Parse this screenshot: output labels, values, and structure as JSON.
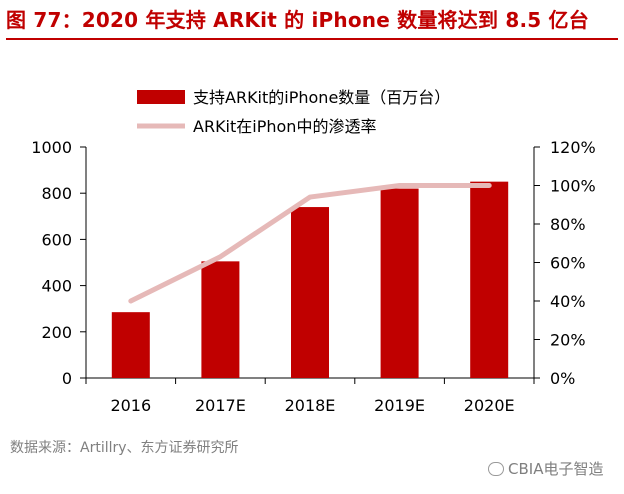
{
  "title": "图 77：2020 年支持 ARKit 的 iPhone 数量将达到 8.5 亿台",
  "source": "数据来源：Artillry、东方证券研究所",
  "watermark": "CBIA电子智造",
  "colors": {
    "bar": "#c00000",
    "line": "#e6b9b8",
    "title": "#c00000"
  },
  "chart_data": {
    "type": "bar",
    "categories": [
      "2016",
      "2017E",
      "2018E",
      "2019E",
      "2020E"
    ],
    "series": [
      {
        "name": "支持ARKit的iPhone数量（百万台）",
        "type": "bar",
        "axis": "left",
        "values": [
          285,
          505,
          740,
          820,
          850
        ]
      },
      {
        "name": "ARKit在iPhon中的渗透率",
        "type": "line",
        "axis": "right",
        "values": [
          0.4,
          0.63,
          0.94,
          1.0,
          1.0
        ]
      }
    ],
    "y_left": {
      "min": 0,
      "max": 1000,
      "ticks": [
        0,
        200,
        400,
        600,
        800,
        1000
      ],
      "tick_labels": [
        "0",
        "200",
        "400",
        "600",
        "800",
        "1000"
      ]
    },
    "y_right": {
      "min": 0,
      "max": 1.2,
      "ticks": [
        0,
        0.2,
        0.4,
        0.6,
        0.8,
        1.0,
        1.2
      ],
      "tick_labels": [
        "0%",
        "20%",
        "40%",
        "60%",
        "80%",
        "100%",
        "120%"
      ]
    },
    "legend": "top",
    "grid": false
  }
}
